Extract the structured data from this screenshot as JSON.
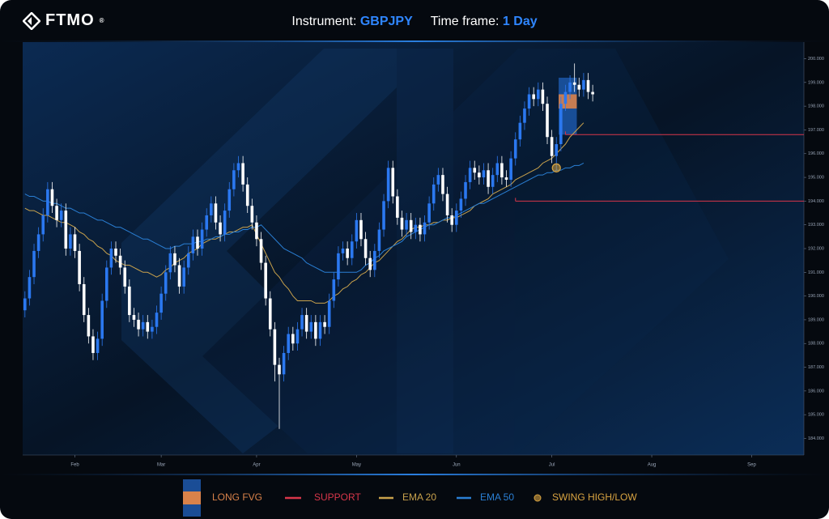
{
  "header": {
    "logo": "FTMO",
    "logo_mark": "®",
    "instrument_label": "Instrument:",
    "instrument": "GBPJPY",
    "timeframe_label": "Time frame:",
    "timeframe": "1 Day"
  },
  "chart_data": {
    "type": "candlestick",
    "categories": [
      null,
      null,
      null,
      null,
      null,
      null,
      null,
      null,
      null,
      null,
      null,
      "Feb",
      null,
      null,
      null,
      null,
      null,
      null,
      null,
      null,
      null,
      null,
      null,
      null,
      null,
      null,
      null,
      null,
      null,
      null,
      "Mar",
      null,
      null,
      null,
      null,
      null,
      null,
      null,
      null,
      null,
      null,
      null,
      null,
      null,
      null,
      null,
      null,
      null,
      null,
      null,
      null,
      "Apr",
      null,
      null,
      null,
      null,
      null,
      null,
      null,
      null,
      null,
      null,
      null,
      null,
      null,
      null,
      null,
      null,
      null,
      null,
      null,
      null,
      null,
      "May",
      null,
      null,
      null,
      null,
      null,
      null,
      null,
      null,
      null,
      null,
      null,
      null,
      null,
      null,
      null,
      null,
      null,
      null,
      null,
      null,
      null,
      "Jun",
      null,
      null,
      null,
      null,
      null,
      null,
      null,
      null,
      null,
      null,
      null,
      null,
      null,
      null,
      null,
      null,
      null,
      null,
      null,
      null,
      "Jul",
      null,
      null,
      null,
      null,
      null,
      null,
      null,
      null,
      null,
      null,
      null,
      null,
      null,
      null,
      null,
      null,
      null,
      null,
      null,
      null,
      null,
      "Aug",
      null,
      null,
      null,
      null,
      null,
      null,
      null,
      null,
      null,
      null,
      null,
      null,
      null,
      null,
      null,
      null,
      null,
      null,
      null,
      null,
      null,
      "Sep",
      null,
      null,
      null,
      null,
      null,
      null,
      null,
      null,
      null,
      null,
      null
    ],
    "open": [
      189.4,
      189.9,
      190.8,
      191.9,
      192.6,
      193.4,
      194.5,
      193.8,
      193.2,
      193.6,
      192.0,
      192.6,
      191.9,
      190.5,
      189.2,
      188.3,
      187.6,
      188.2,
      189.8,
      191.2,
      192.0,
      191.7,
      191.2,
      190.4,
      189.2,
      189.0,
      188.6,
      188.9,
      188.5,
      188.7,
      189.3,
      190.1,
      191.0,
      191.8,
      191.3,
      190.4,
      191.2,
      191.8,
      192.5,
      192.0,
      192.8,
      193.4,
      193.9,
      193.1,
      192.6,
      193.6,
      194.5,
      195.3,
      195.6,
      194.7,
      193.8,
      193.1,
      192.4,
      191.4,
      189.9,
      188.6,
      187.1,
      186.7,
      187.6,
      188.4,
      188.0,
      188.6,
      189.2,
      188.5,
      188.9,
      188.2,
      188.9,
      188.7,
      189.8,
      190.7,
      191.8,
      192.0,
      191.6,
      192.3,
      193.2,
      192.4,
      191.6,
      191.1,
      191.9,
      192.8,
      194.0,
      195.4,
      194.2,
      193.3,
      192.8,
      193.2,
      192.7,
      193.0,
      192.6,
      193.1,
      193.9,
      194.7,
      195.1,
      194.3,
      193.4,
      193.0,
      193.6,
      194.1,
      194.8,
      195.4,
      195.2,
      195.0,
      195.3,
      194.6,
      195.1,
      195.6,
      195.0,
      194.9,
      195.8,
      196.6,
      197.3,
      197.9,
      198.5,
      198.3,
      198.7,
      198.1,
      196.7,
      195.9,
      196.4,
      198.1,
      198.6,
      199.0,
      198.9,
      198.7,
      199.1,
      198.6,
      null,
      null,
      null,
      null,
      null,
      null,
      null,
      null,
      null,
      null,
      null,
      null,
      null,
      null,
      null,
      null,
      null,
      null,
      null,
      null,
      null,
      null,
      null,
      null,
      null,
      null,
      null,
      null,
      null,
      null,
      null,
      null,
      null,
      null,
      null,
      null,
      null,
      null,
      null,
      null,
      null,
      null,
      null,
      null,
      null,
      null
    ],
    "high": [
      190.2,
      191.1,
      192.2,
      192.9,
      193.7,
      194.8,
      194.8,
      194.1,
      193.9,
      193.9,
      192.9,
      192.9,
      192.2,
      190.8,
      189.5,
      188.6,
      188.5,
      190.1,
      191.5,
      192.3,
      192.3,
      192.0,
      191.5,
      190.7,
      189.5,
      189.3,
      189.2,
      189.2,
      189.0,
      189.6,
      190.4,
      191.3,
      192.1,
      192.1,
      191.6,
      191.5,
      192.1,
      192.8,
      192.8,
      193.1,
      193.7,
      194.2,
      194.2,
      193.4,
      193.9,
      194.8,
      195.6,
      195.9,
      195.9,
      195.0,
      194.1,
      193.4,
      192.7,
      191.7,
      190.2,
      188.9,
      187.4,
      187.9,
      188.7,
      188.7,
      188.9,
      189.5,
      189.5,
      189.2,
      189.2,
      189.2,
      189.2,
      190.1,
      191.0,
      192.1,
      192.3,
      192.3,
      192.6,
      193.5,
      193.5,
      192.7,
      191.9,
      192.2,
      193.1,
      194.3,
      195.7,
      195.7,
      194.5,
      193.6,
      193.5,
      193.5,
      193.3,
      193.3,
      193.4,
      194.2,
      195.0,
      195.4,
      195.4,
      194.6,
      193.7,
      193.9,
      194.4,
      195.1,
      195.7,
      195.7,
      195.5,
      195.6,
      195.6,
      195.4,
      195.9,
      195.9,
      195.3,
      196.1,
      196.9,
      197.6,
      198.2,
      198.8,
      198.8,
      199.0,
      199.0,
      198.4,
      197.0,
      196.7,
      198.4,
      198.9,
      199.3,
      199.8,
      199.2,
      199.4,
      199.4,
      198.9,
      null,
      null,
      null,
      null,
      null,
      null,
      null,
      null,
      null,
      null,
      null,
      null,
      null,
      null,
      null,
      null,
      null,
      null,
      null,
      null,
      null,
      null,
      null,
      null,
      null,
      null,
      null,
      null,
      null,
      null,
      null,
      null,
      null,
      null,
      null,
      null,
      null,
      null,
      null,
      null,
      null,
      null,
      null,
      null,
      null,
      null
    ],
    "low": [
      189.1,
      189.6,
      190.5,
      191.6,
      192.3,
      193.1,
      193.5,
      192.9,
      192.9,
      191.7,
      191.7,
      191.6,
      190.2,
      188.9,
      188.0,
      187.3,
      187.3,
      187.9,
      189.5,
      190.9,
      191.4,
      190.9,
      190.1,
      188.9,
      188.7,
      188.3,
      188.3,
      188.2,
      188.2,
      188.4,
      189.0,
      189.8,
      190.7,
      191.0,
      190.1,
      190.1,
      190.9,
      191.5,
      191.7,
      191.7,
      192.5,
      193.1,
      192.8,
      192.3,
      192.3,
      193.3,
      194.2,
      195.0,
      194.4,
      193.5,
      192.8,
      192.1,
      191.1,
      189.6,
      188.3,
      186.4,
      184.4,
      186.4,
      187.3,
      187.7,
      187.7,
      188.3,
      188.2,
      188.2,
      187.9,
      187.9,
      188.4,
      188.4,
      189.5,
      190.4,
      191.5,
      191.3,
      191.3,
      192.0,
      192.1,
      191.3,
      190.8,
      190.8,
      191.6,
      192.5,
      193.7,
      193.9,
      193.0,
      192.5,
      192.5,
      192.4,
      192.4,
      192.3,
      192.3,
      192.8,
      193.6,
      194.4,
      194.0,
      193.1,
      192.7,
      192.7,
      193.3,
      193.8,
      194.5,
      194.9,
      194.7,
      194.7,
      194.3,
      194.3,
      194.8,
      194.7,
      194.6,
      194.6,
      195.5,
      196.3,
      197.0,
      197.6,
      198.0,
      198.0,
      197.8,
      196.4,
      195.6,
      195.3,
      196.1,
      197.8,
      198.3,
      198.6,
      198.4,
      198.4,
      198.3,
      198.2,
      null,
      null,
      null,
      null,
      null,
      null,
      null,
      null,
      null,
      null,
      null,
      null,
      null,
      null,
      null,
      null,
      null,
      null,
      null,
      null,
      null,
      null,
      null,
      null,
      null,
      null,
      null,
      null,
      null,
      null,
      null,
      null,
      null,
      null,
      null,
      null,
      null,
      null,
      null,
      null,
      null,
      null,
      null,
      null,
      null,
      null
    ],
    "close": [
      189.9,
      190.8,
      191.9,
      192.6,
      193.4,
      194.5,
      193.8,
      193.2,
      193.6,
      192.0,
      192.6,
      191.9,
      190.5,
      189.2,
      188.3,
      187.6,
      188.2,
      189.8,
      191.2,
      192.0,
      191.7,
      191.2,
      190.4,
      189.2,
      189.0,
      188.6,
      188.9,
      188.5,
      188.7,
      189.3,
      190.1,
      191.0,
      191.8,
      191.3,
      190.4,
      191.2,
      191.8,
      192.5,
      192.0,
      192.8,
      193.4,
      193.9,
      193.1,
      192.6,
      193.6,
      194.5,
      195.3,
      195.6,
      194.7,
      193.8,
      193.1,
      192.4,
      191.4,
      189.9,
      188.6,
      187.1,
      186.7,
      187.6,
      188.4,
      188.0,
      188.6,
      189.2,
      188.5,
      188.9,
      188.2,
      188.9,
      188.7,
      189.8,
      190.7,
      191.8,
      192.0,
      191.6,
      192.3,
      193.2,
      192.4,
      191.6,
      191.1,
      191.9,
      192.8,
      194.0,
      195.4,
      194.2,
      193.3,
      192.8,
      193.2,
      192.7,
      193.0,
      192.6,
      193.1,
      193.9,
      194.7,
      195.1,
      194.3,
      193.4,
      193.0,
      193.6,
      194.1,
      194.8,
      195.4,
      195.2,
      195.0,
      195.3,
      194.6,
      195.1,
      195.6,
      195.0,
      194.9,
      195.8,
      196.6,
      197.3,
      197.9,
      198.5,
      198.3,
      198.7,
      198.1,
      196.7,
      195.9,
      196.4,
      198.1,
      198.6,
      199.0,
      198.9,
      198.7,
      199.1,
      198.6,
      198.5,
      null,
      null,
      null,
      null,
      null,
      null,
      null,
      null,
      null,
      null,
      null,
      null,
      null,
      null,
      null,
      null,
      null,
      null,
      null,
      null,
      null,
      null,
      null,
      null,
      null,
      null,
      null,
      null,
      null,
      null,
      null,
      null,
      null,
      null,
      null,
      null,
      null,
      null,
      null,
      null,
      null,
      null,
      null,
      null,
      null,
      null
    ],
    "up_color": "#2b78f0",
    "down_color": "#ffffff",
    "ema": [
      {
        "name": "EMA 20",
        "color": "#c9a24c",
        "values": [
          193.7,
          193.6,
          193.6,
          193.5,
          193.4,
          193.4,
          193.3,
          193.2,
          193.1,
          193.1,
          193.0,
          192.9,
          192.7,
          192.6,
          192.4,
          192.3,
          192.1,
          192.0,
          191.8,
          191.7,
          191.5,
          191.4,
          191.3,
          191.3,
          191.2,
          191.1,
          191.0,
          191.0,
          190.9,
          190.8,
          190.9,
          191.1,
          191.2,
          191.4,
          191.5,
          191.6,
          191.8,
          191.9,
          192.0,
          192.2,
          192.3,
          192.4,
          192.4,
          192.5,
          192.6,
          192.7,
          192.7,
          192.8,
          192.9,
          192.9,
          193.0,
          192.6,
          192.2,
          191.8,
          191.4,
          191.0,
          190.8,
          190.5,
          190.3,
          190.0,
          189.8,
          189.8,
          189.8,
          189.8,
          189.7,
          189.7,
          189.7,
          189.8,
          190.0,
          190.1,
          190.3,
          190.4,
          190.6,
          190.7,
          190.9,
          191.0,
          191.2,
          191.4,
          191.5,
          191.7,
          191.9,
          192.1,
          192.3,
          192.4,
          192.6,
          192.8,
          192.9,
          192.9,
          193.0,
          193.0,
          193.1,
          193.1,
          193.2,
          193.2,
          193.3,
          193.3,
          193.4,
          193.5,
          193.6,
          193.8,
          193.9,
          194.0,
          194.1,
          194.3,
          194.4,
          194.5,
          194.6,
          194.7,
          194.9,
          195.0,
          195.1,
          195.2,
          195.3,
          195.4,
          195.6,
          195.7,
          195.8,
          196.0,
          196.2,
          196.4,
          196.7,
          196.9,
          197.1,
          197.3,
          null,
          null,
          null,
          null,
          null,
          null,
          null,
          null,
          null,
          null,
          null,
          null,
          null,
          null,
          null,
          null,
          null,
          null,
          null,
          null,
          null,
          null,
          null,
          null,
          null,
          null,
          null,
          null,
          null,
          null,
          null,
          null,
          null,
          null,
          null,
          null,
          null,
          null,
          null,
          null,
          null,
          null,
          null,
          null,
          null,
          null,
          null,
          null
        ]
      },
      {
        "name": "EMA 50",
        "color": "#2a7fd4",
        "values": [
          194.3,
          194.2,
          194.2,
          194.1,
          194.0,
          194.0,
          193.9,
          193.9,
          193.8,
          193.7,
          193.7,
          193.6,
          193.5,
          193.5,
          193.4,
          193.3,
          193.2,
          193.2,
          193.1,
          193.0,
          192.9,
          192.9,
          192.8,
          192.7,
          192.6,
          192.5,
          192.4,
          192.4,
          192.3,
          192.2,
          192.1,
          192.0,
          192.0,
          192.1,
          192.1,
          192.2,
          192.2,
          192.2,
          192.3,
          192.3,
          192.4,
          192.4,
          192.5,
          192.5,
          192.6,
          192.6,
          192.7,
          192.7,
          192.8,
          192.8,
          192.9,
          192.9,
          193.0,
          192.8,
          192.6,
          192.4,
          192.2,
          192.0,
          191.9,
          191.8,
          191.7,
          191.6,
          191.4,
          191.3,
          191.2,
          191.1,
          191.0,
          191.0,
          191.0,
          191.0,
          191.0,
          191.0,
          191.0,
          191.0,
          191.1,
          191.3,
          191.4,
          191.6,
          191.7,
          191.9,
          192.0,
          192.1,
          192.2,
          192.3,
          192.5,
          192.6,
          192.7,
          192.8,
          192.9,
          193.0,
          193.0,
          193.1,
          193.2,
          193.3,
          193.3,
          193.4,
          193.5,
          193.6,
          193.7,
          193.8,
          193.9,
          193.9,
          194.0,
          194.1,
          194.2,
          194.3,
          194.4,
          194.5,
          194.6,
          194.7,
          194.8,
          194.9,
          195.0,
          195.1,
          195.1,
          195.2,
          195.2,
          195.3,
          195.3,
          195.4,
          195.4,
          195.5,
          195.5,
          195.6,
          null,
          null,
          null,
          null,
          null,
          null,
          null,
          null,
          null,
          null,
          null,
          null,
          null,
          null,
          null,
          null,
          null,
          null,
          null,
          null,
          null,
          null,
          null,
          null,
          null,
          null,
          null,
          null,
          null,
          null,
          null,
          null,
          null,
          null,
          null,
          null,
          null,
          null,
          null,
          null,
          null,
          null,
          null,
          null,
          null,
          null,
          null,
          null
        ]
      }
    ],
    "support": {
      "name": "SUPPORT",
      "color": "#d8364a",
      "levels": [
        {
          "value": 196.8,
          "start": 119
        },
        {
          "value": 194.0,
          "start": 108
        }
      ]
    },
    "fvg": {
      "name": "LONG FVG",
      "color": "#1f5fb8",
      "inner_color": "#d9824a",
      "zone": [
        196.8,
        199.2
      ],
      "inner": [
        197.9,
        198.5
      ],
      "start": 118,
      "end": 121
    },
    "swing": {
      "name": "SWING HIGH/LOW",
      "color": "#d9a441",
      "index": 117,
      "value": 195.4
    },
    "ylim": [
      183.3,
      200.7
    ],
    "yticks": [
      {
        "value": 184,
        "label": "184.000"
      },
      {
        "value": 185,
        "label": "185.000"
      },
      {
        "value": 186,
        "label": "186.000"
      },
      {
        "value": 187,
        "label": "187.000"
      },
      {
        "value": 188,
        "label": "188.000"
      },
      {
        "value": 189,
        "label": "189.000"
      },
      {
        "value": 190,
        "label": "190.000"
      },
      {
        "value": 191,
        "label": "191.000"
      },
      {
        "value": 192,
        "label": "192.000"
      },
      {
        "value": 193,
        "label": "193.000"
      },
      {
        "value": 194,
        "label": "194.000"
      },
      {
        "value": 195,
        "label": "195.000"
      },
      {
        "value": 196,
        "label": "196.000"
      },
      {
        "value": 197,
        "label": "197.000"
      },
      {
        "value": 198,
        "label": "198.000"
      },
      {
        "value": 199,
        "label": "199.000"
      },
      {
        "value": 200,
        "label": "200.000"
      }
    ],
    "grid": false
  }
}
